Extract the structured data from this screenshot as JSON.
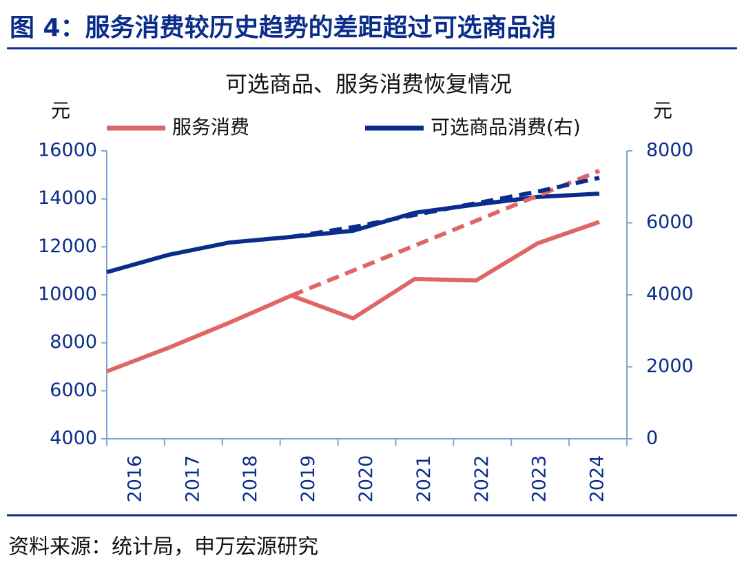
{
  "header": {
    "title": "图 4：服务消费较历史趋势的差距超过可选商品消"
  },
  "chart_data": {
    "type": "line",
    "title": "可选商品、服务消费恢复情况",
    "ylabel": "元",
    "y2label": "元",
    "categories": [
      "2016",
      "2017",
      "2018",
      "2019",
      "2020",
      "2021",
      "2022",
      "2023",
      "2024"
    ],
    "series": [
      {
        "name": "服务消费",
        "color": "#e06666",
        "values": [
          6810,
          7790,
          8850,
          9970,
          9020,
          10660,
          10600,
          12150,
          13040
        ]
      },
      {
        "name": "可选商品消费(右)",
        "color": "#0a2d8c",
        "axis": "y2",
        "values": [
          4630,
          5110,
          5455,
          5610,
          5780,
          6280,
          6510,
          6720,
          6810
        ]
      },
      {
        "color": "#e06666",
        "dashed": true,
        "values": [
          null,
          null,
          null,
          9970,
          11010,
          12050,
          13090,
          14130,
          15170
        ]
      },
      {
        "color": "#0a2d8c",
        "dashed": true,
        "axis": "y2",
        "values": [
          null,
          null,
          null,
          5610,
          5880,
          6220,
          6545,
          6870,
          7250
        ]
      }
    ],
    "ylim": [
      4000,
      16000
    ],
    "yticks": [
      4000,
      6000,
      8000,
      10000,
      12000,
      14000,
      16000
    ],
    "y2lim": [
      0,
      8000
    ],
    "y2ticks": [
      0,
      2000,
      4000,
      6000,
      8000
    ]
  },
  "footer": {
    "source": "资料来源：统计局，申万宏源研究"
  }
}
